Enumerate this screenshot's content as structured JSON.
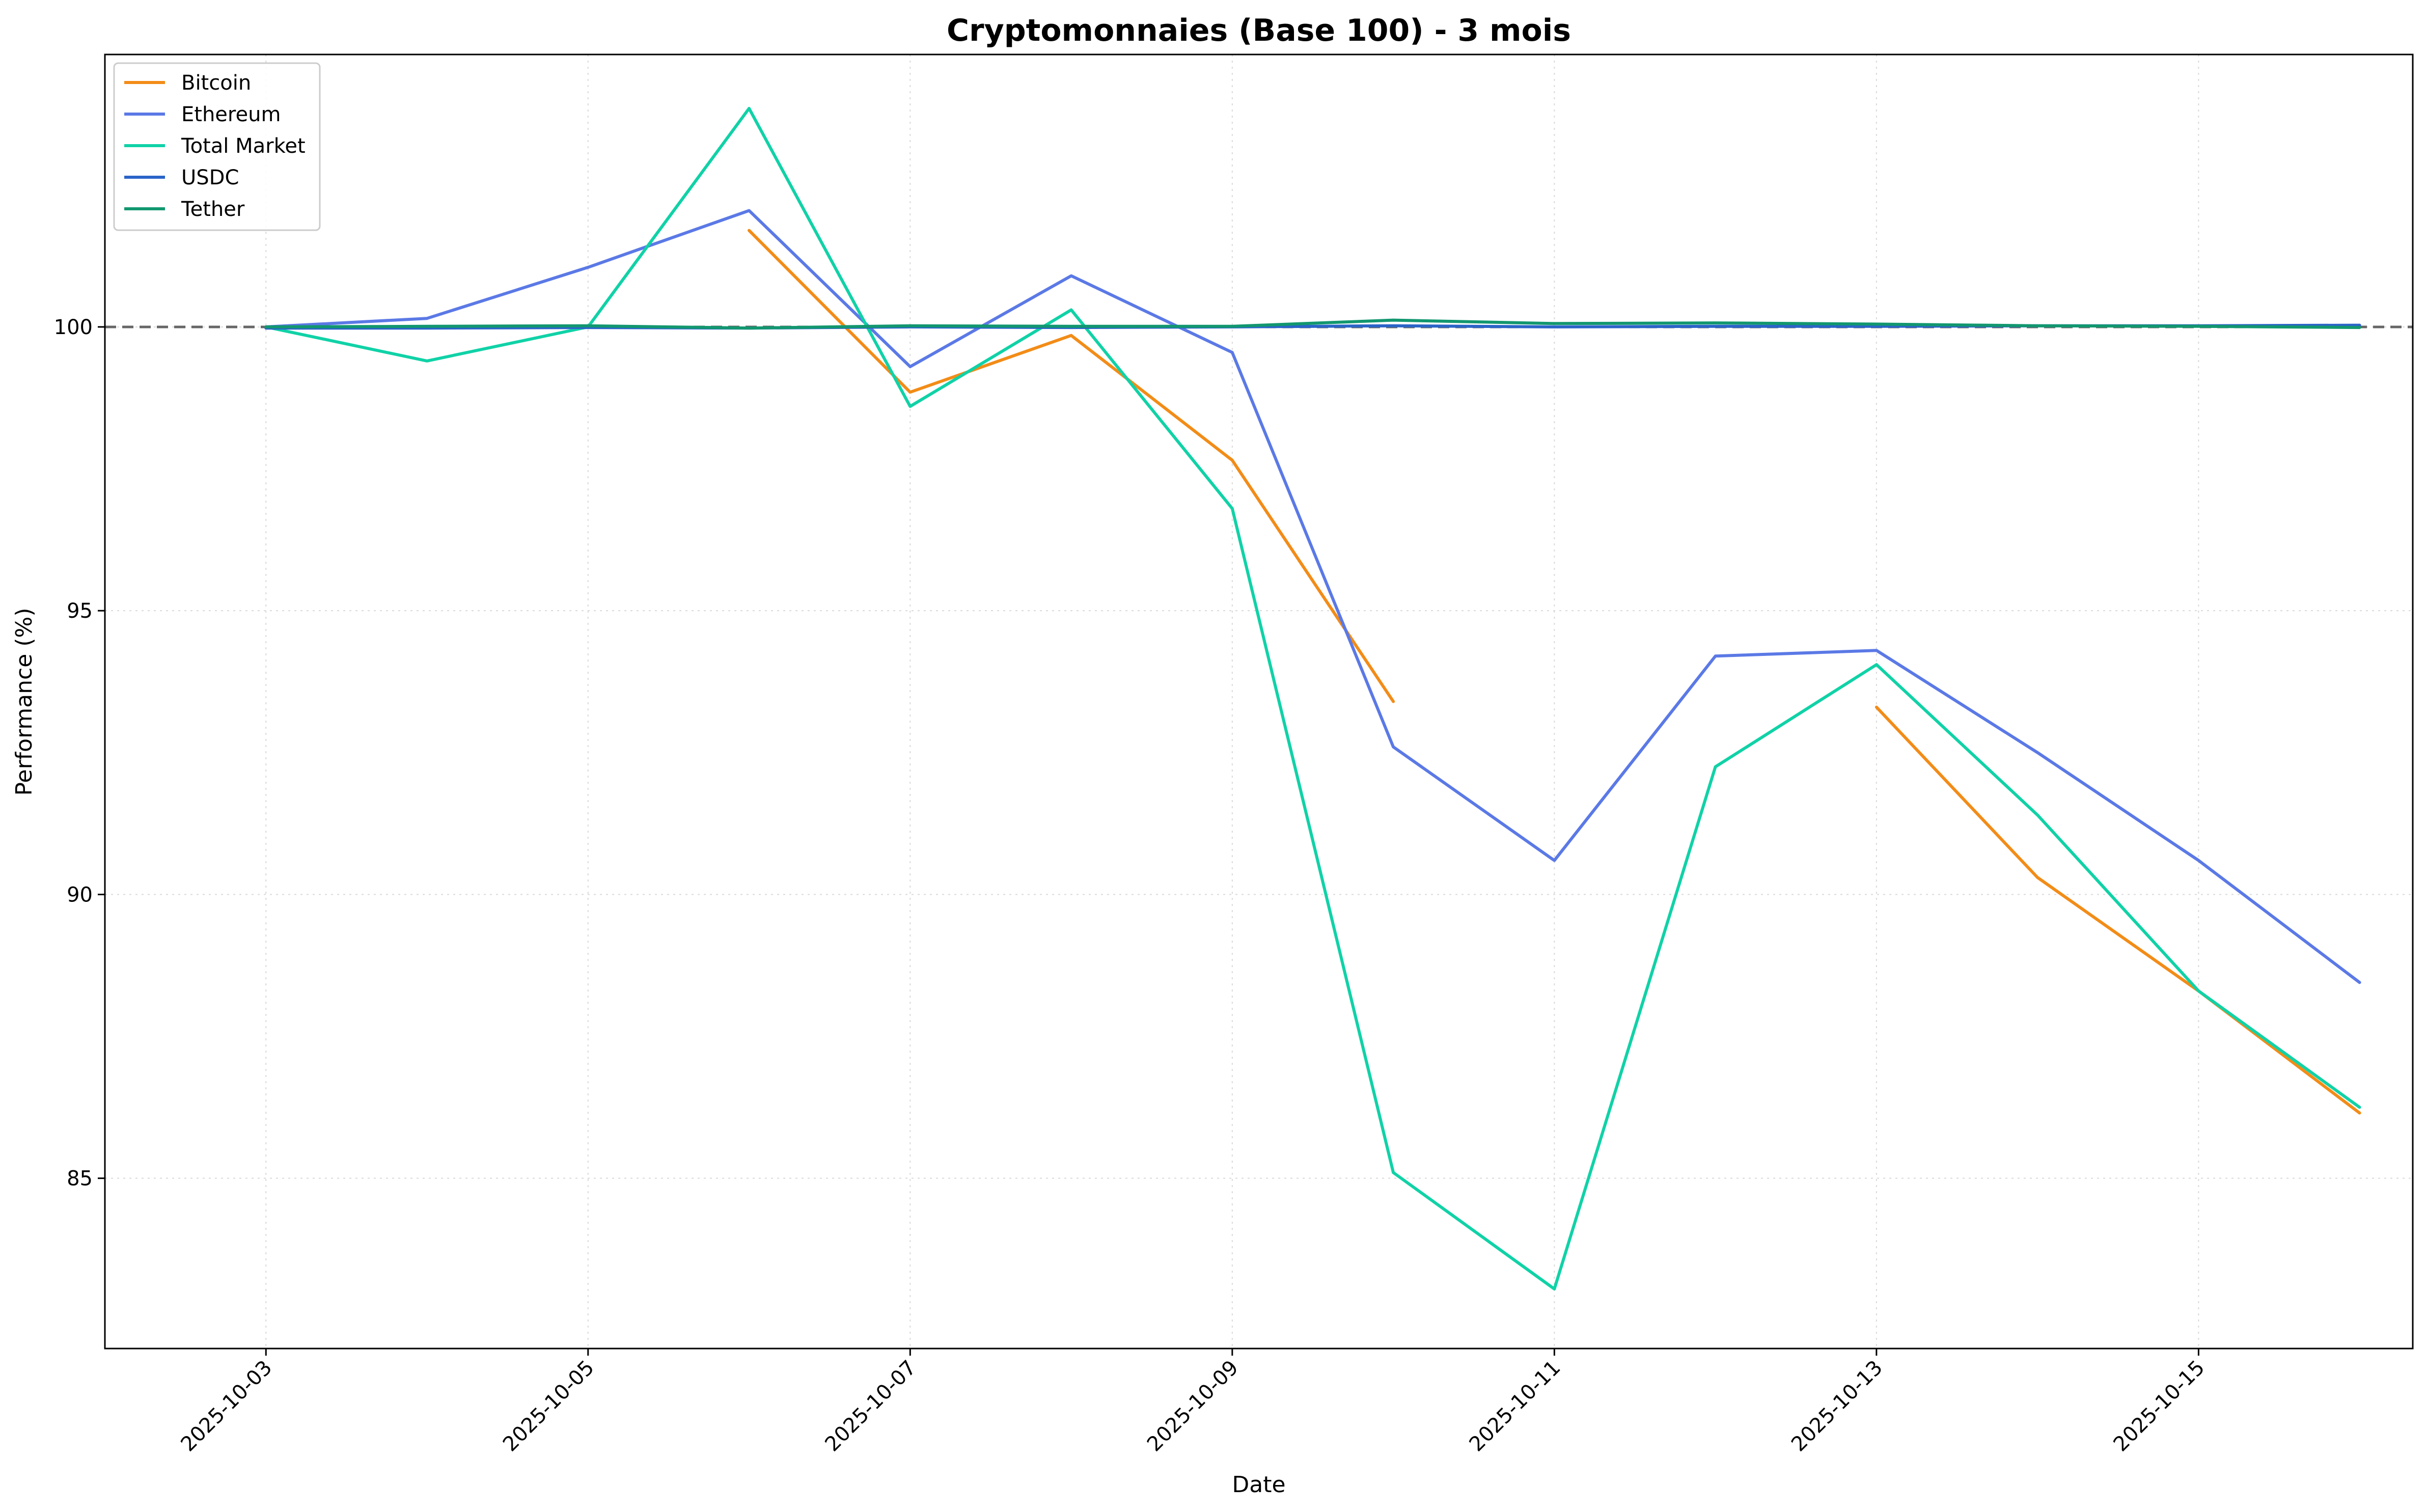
{
  "chart_data": {
    "type": "line",
    "title": "Cryptomonnaies (Base 100) - 3 mois",
    "xlabel": "Date",
    "ylabel": "Performance (%)",
    "x": [
      "2025-10-03",
      "2025-10-04",
      "2025-10-05",
      "2025-10-06",
      "2025-10-07",
      "2025-10-08",
      "2025-10-09",
      "2025-10-10",
      "2025-10-11",
      "2025-10-12",
      "2025-10-13",
      "2025-10-14",
      "2025-10-15",
      "2025-10-16"
    ],
    "x_ticks": [
      "2025-10-03",
      "2025-10-05",
      "2025-10-07",
      "2025-10-09",
      "2025-10-11",
      "2025-10-13",
      "2025-10-15"
    ],
    "y_ticks": [
      85,
      90,
      95,
      100
    ],
    "ylim": [
      82,
      104.8
    ],
    "xlim": [
      "2025-10-02",
      "2025-10-16"
    ],
    "grid": true,
    "reference_line": {
      "y": 100,
      "style": "dashed",
      "color": "#666666"
    },
    "legend_position": "top-left",
    "series": [
      {
        "name": "Bitcoin",
        "color": "#f28c17",
        "values": [
          null,
          null,
          null,
          101.7,
          98.85,
          99.85,
          97.65,
          93.4,
          null,
          null,
          93.3,
          90.3,
          88.3,
          86.15
        ]
      },
      {
        "name": "Ethereum",
        "color": "#5b79e6",
        "values": [
          100,
          100.15,
          101.05,
          102.05,
          99.3,
          100.9,
          99.55,
          92.6,
          90.6,
          94.2,
          94.3,
          92.5,
          90.6,
          88.45
        ]
      },
      {
        "name": "Total Market",
        "color": "#10d2a7",
        "values": [
          100,
          99.4,
          100.0,
          103.85,
          98.6,
          100.3,
          96.8,
          85.1,
          83.05,
          92.25,
          94.05,
          91.4,
          88.3,
          86.25
        ]
      },
      {
        "name": "USDC",
        "color": "#2a64c8",
        "values": [
          99.98,
          99.98,
          99.99,
          99.98,
          100.0,
          99.99,
          100.0,
          100.02,
          100.0,
          100.01,
          100.01,
          100.02,
          100.02,
          100.03
        ]
      },
      {
        "name": "Tether",
        "color": "#12976f",
        "values": [
          100,
          100.01,
          100.02,
          99.98,
          100.02,
          100.01,
          100.01,
          100.12,
          100.06,
          100.07,
          100.05,
          100.02,
          100.01,
          99.99
        ]
      }
    ]
  }
}
